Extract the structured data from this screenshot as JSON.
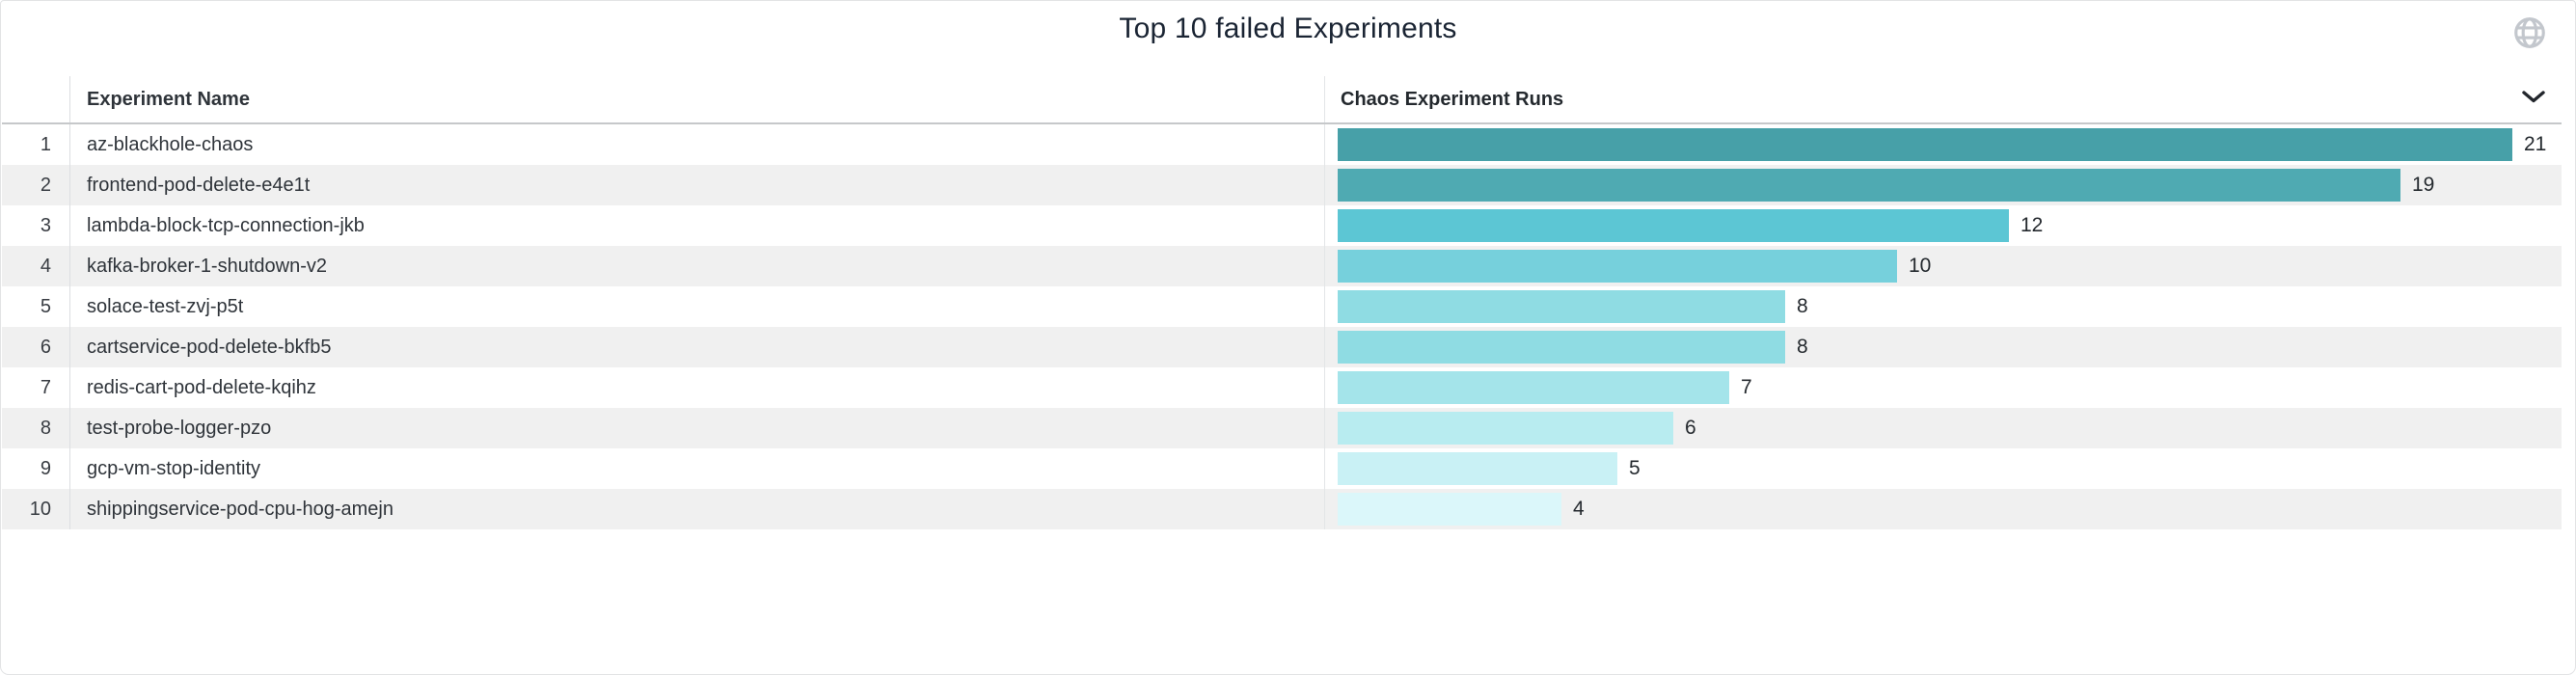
{
  "panel": {
    "title": "Top 10 failed Experiments",
    "columns": {
      "name": "Experiment Name",
      "runs": "Chaos Experiment Runs"
    }
  },
  "icons": {
    "globe": "globe-icon",
    "chevron": "chevron-down-icon"
  },
  "colors": {
    "title_text": "#1a2433",
    "header_text": "#24292e",
    "row_text": "#2f343a",
    "value_text": "#24292e",
    "stripe": "#f0f0f0",
    "divider": "#dcdee1",
    "globe_icon": "#c3c7cd"
  },
  "chart_data": {
    "type": "bar",
    "orientation": "horizontal",
    "title": "Top 10 failed Experiments",
    "xlabel": "Chaos Experiment Runs",
    "ylabel": "Experiment Name",
    "xlim": [
      0,
      21
    ],
    "grid": false,
    "legend": "none",
    "categories": [
      "az-blackhole-chaos",
      "frontend-pod-delete-e4e1t",
      "lambda-block-tcp-connection-jkb",
      "kafka-broker-1-shutdown-v2",
      "solace-test-zvj-p5t",
      "cartservice-pod-delete-bkfb5",
      "redis-cart-pod-delete-kqihz",
      "test-probe-logger-pzo",
      "gcp-vm-stop-identity",
      "shippingservice-pod-cpu-hog-amejn"
    ],
    "row_numbers": [
      1,
      2,
      3,
      4,
      5,
      6,
      7,
      8,
      9,
      10
    ],
    "values": [
      21,
      19,
      12,
      10,
      8,
      8,
      7,
      6,
      5,
      4
    ],
    "bar_colors": [
      "#47a0a8",
      "#4faab2",
      "#5cc6d4",
      "#76d0dc",
      "#8fdce3",
      "#8fdce3",
      "#a4e4ea",
      "#b8ecf0",
      "#c9f1f5",
      "#dbf7fa"
    ]
  }
}
